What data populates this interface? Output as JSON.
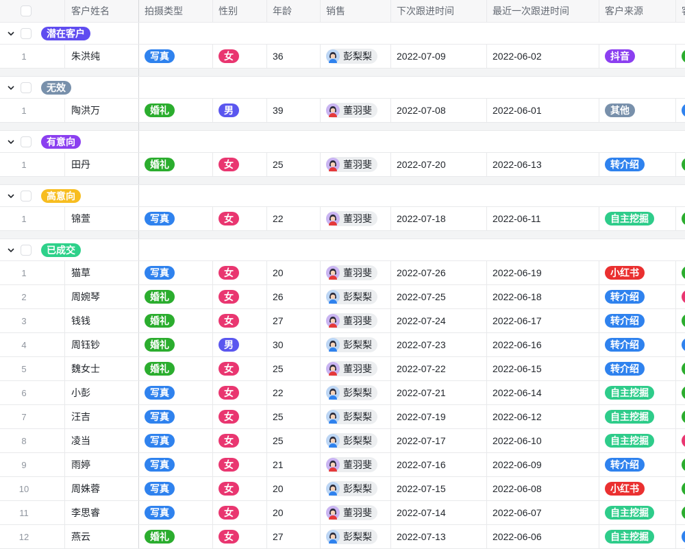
{
  "columns": [
    "客户姓名",
    "拍摄类型",
    "性别",
    "年龄",
    "销售",
    "下次跟进时间",
    "最近一次跟进时间",
    "客户来源",
    "客"
  ],
  "colors": {
    "写真": "#2f82ee",
    "婚礼": "#2bad2e",
    "女": "#e93670",
    "男": "#5a56ef",
    "抖音": "#8b3ff0",
    "其他": "#7890ab",
    "转介绍": "#2f82ee",
    "自主挖掘": "#2ecc8a",
    "小红书": "#ea3030",
    "green": "#2bad2e",
    "blue": "#2f82ee",
    "pink": "#e93670"
  },
  "groups": [
    {
      "label": "潜在客户",
      "color": "#5f4cf0",
      "rows": [
        {
          "n": "1",
          "name": "朱洪纯",
          "type": "写真",
          "gender": "女",
          "age": "36",
          "sales": "彭梨梨",
          "next": "2022-07-09",
          "last": "2022-06-02",
          "source": "抖音",
          "extra": "green"
        }
      ]
    },
    {
      "label": "无效",
      "color": "#7890ab",
      "rows": [
        {
          "n": "1",
          "name": "陶洪万",
          "type": "婚礼",
          "gender": "男",
          "age": "39",
          "sales": "董羽斐",
          "next": "2022-07-08",
          "last": "2022-06-01",
          "source": "其他",
          "extra": "blue"
        }
      ]
    },
    {
      "label": "有意向",
      "color": "#8b3ff0",
      "rows": [
        {
          "n": "1",
          "name": "田丹",
          "type": "婚礼",
          "gender": "女",
          "age": "25",
          "sales": "董羽斐",
          "next": "2022-07-20",
          "last": "2022-06-13",
          "source": "转介绍",
          "extra": "green"
        }
      ]
    },
    {
      "label": "高意向",
      "color": "#f7bd20",
      "rows": [
        {
          "n": "1",
          "name": "锦萱",
          "type": "写真",
          "gender": "女",
          "age": "22",
          "sales": "董羽斐",
          "next": "2022-07-18",
          "last": "2022-06-11",
          "source": "自主挖掘",
          "extra": "green"
        }
      ]
    },
    {
      "label": "已成交",
      "color": "#2ed18a",
      "rows": [
        {
          "n": "1",
          "name": "猫草",
          "type": "写真",
          "gender": "女",
          "age": "20",
          "sales": "董羽斐",
          "next": "2022-07-26",
          "last": "2022-06-19",
          "source": "小红书",
          "extra": "green"
        },
        {
          "n": "2",
          "name": "周婉琴",
          "type": "婚礼",
          "gender": "女",
          "age": "26",
          "sales": "彭梨梨",
          "next": "2022-07-25",
          "last": "2022-06-18",
          "source": "转介绍",
          "extra": "pink"
        },
        {
          "n": "3",
          "name": "钱钱",
          "type": "婚礼",
          "gender": "女",
          "age": "27",
          "sales": "董羽斐",
          "next": "2022-07-24",
          "last": "2022-06-17",
          "source": "转介绍",
          "extra": "green"
        },
        {
          "n": "4",
          "name": "周钰钞",
          "type": "婚礼",
          "gender": "男",
          "age": "30",
          "sales": "彭梨梨",
          "next": "2022-07-23",
          "last": "2022-06-16",
          "source": "转介绍",
          "extra": "blue"
        },
        {
          "n": "5",
          "name": "魏女士",
          "type": "婚礼",
          "gender": "女",
          "age": "25",
          "sales": "董羽斐",
          "next": "2022-07-22",
          "last": "2022-06-15",
          "source": "转介绍",
          "extra": "green"
        },
        {
          "n": "6",
          "name": "小彭",
          "type": "写真",
          "gender": "女",
          "age": "22",
          "sales": "彭梨梨",
          "next": "2022-07-21",
          "last": "2022-06-14",
          "source": "自主挖掘",
          "extra": "green"
        },
        {
          "n": "7",
          "name": "汪吉",
          "type": "写真",
          "gender": "女",
          "age": "25",
          "sales": "彭梨梨",
          "next": "2022-07-19",
          "last": "2022-06-12",
          "source": "自主挖掘",
          "extra": "green"
        },
        {
          "n": "8",
          "name": "凌当",
          "type": "写真",
          "gender": "女",
          "age": "25",
          "sales": "彭梨梨",
          "next": "2022-07-17",
          "last": "2022-06-10",
          "source": "自主挖掘",
          "extra": "pink"
        },
        {
          "n": "9",
          "name": "雨婷",
          "type": "写真",
          "gender": "女",
          "age": "21",
          "sales": "董羽斐",
          "next": "2022-07-16",
          "last": "2022-06-09",
          "source": "转介绍",
          "extra": "green"
        },
        {
          "n": "10",
          "name": "周姝蓉",
          "type": "写真",
          "gender": "女",
          "age": "20",
          "sales": "彭梨梨",
          "next": "2022-07-15",
          "last": "2022-06-08",
          "source": "小红书",
          "extra": "green"
        },
        {
          "n": "11",
          "name": "李思睿",
          "type": "写真",
          "gender": "女",
          "age": "20",
          "sales": "董羽斐",
          "next": "2022-07-14",
          "last": "2022-06-07",
          "source": "自主挖掘",
          "extra": "green"
        },
        {
          "n": "12",
          "name": "燕云",
          "type": "婚礼",
          "gender": "女",
          "age": "27",
          "sales": "彭梨梨",
          "next": "2022-07-13",
          "last": "2022-06-06",
          "source": "自主挖掘",
          "extra": "blue"
        }
      ]
    }
  ]
}
